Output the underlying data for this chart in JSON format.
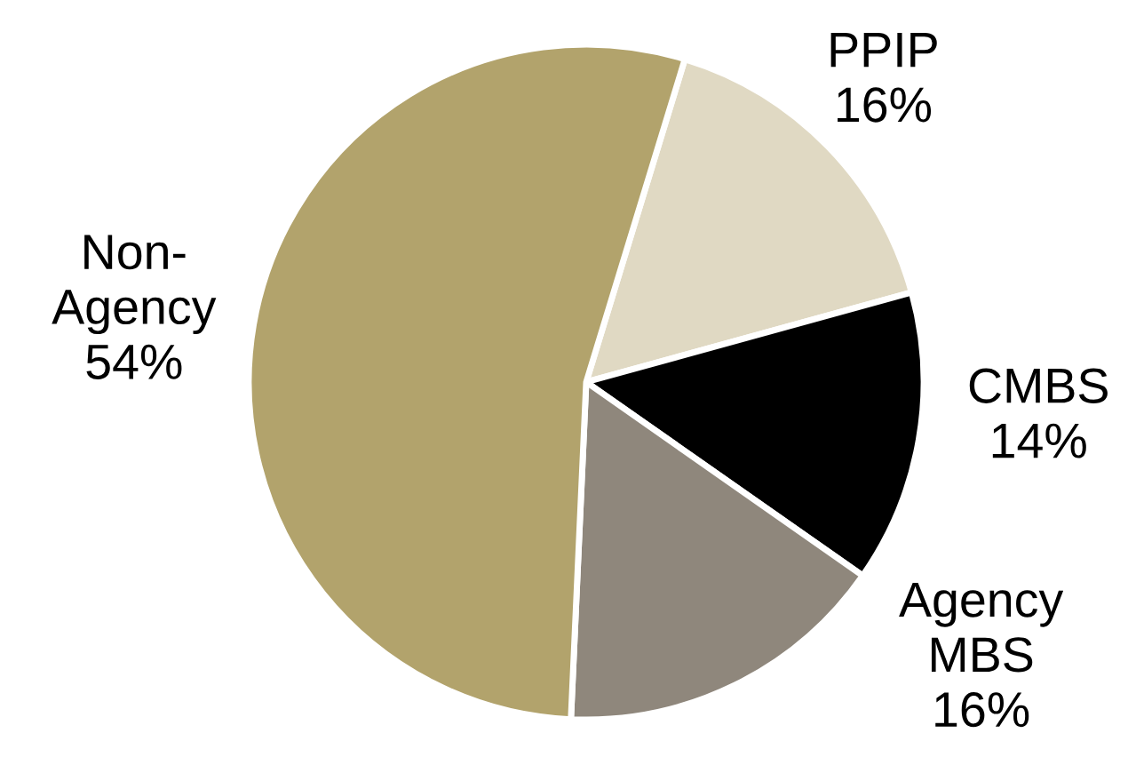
{
  "chart_data": {
    "type": "pie",
    "categories": [
      "PPIP",
      "CMBS",
      "Agency\nMBS",
      "Non-\nAgency"
    ],
    "values": [
      16,
      14,
      16,
      54
    ],
    "value_labels": [
      "16%",
      "14%",
      "16%",
      "54%"
    ],
    "colors": [
      "#e0d9c3",
      "#000000",
      "#8f877c",
      "#b2a36c"
    ]
  }
}
